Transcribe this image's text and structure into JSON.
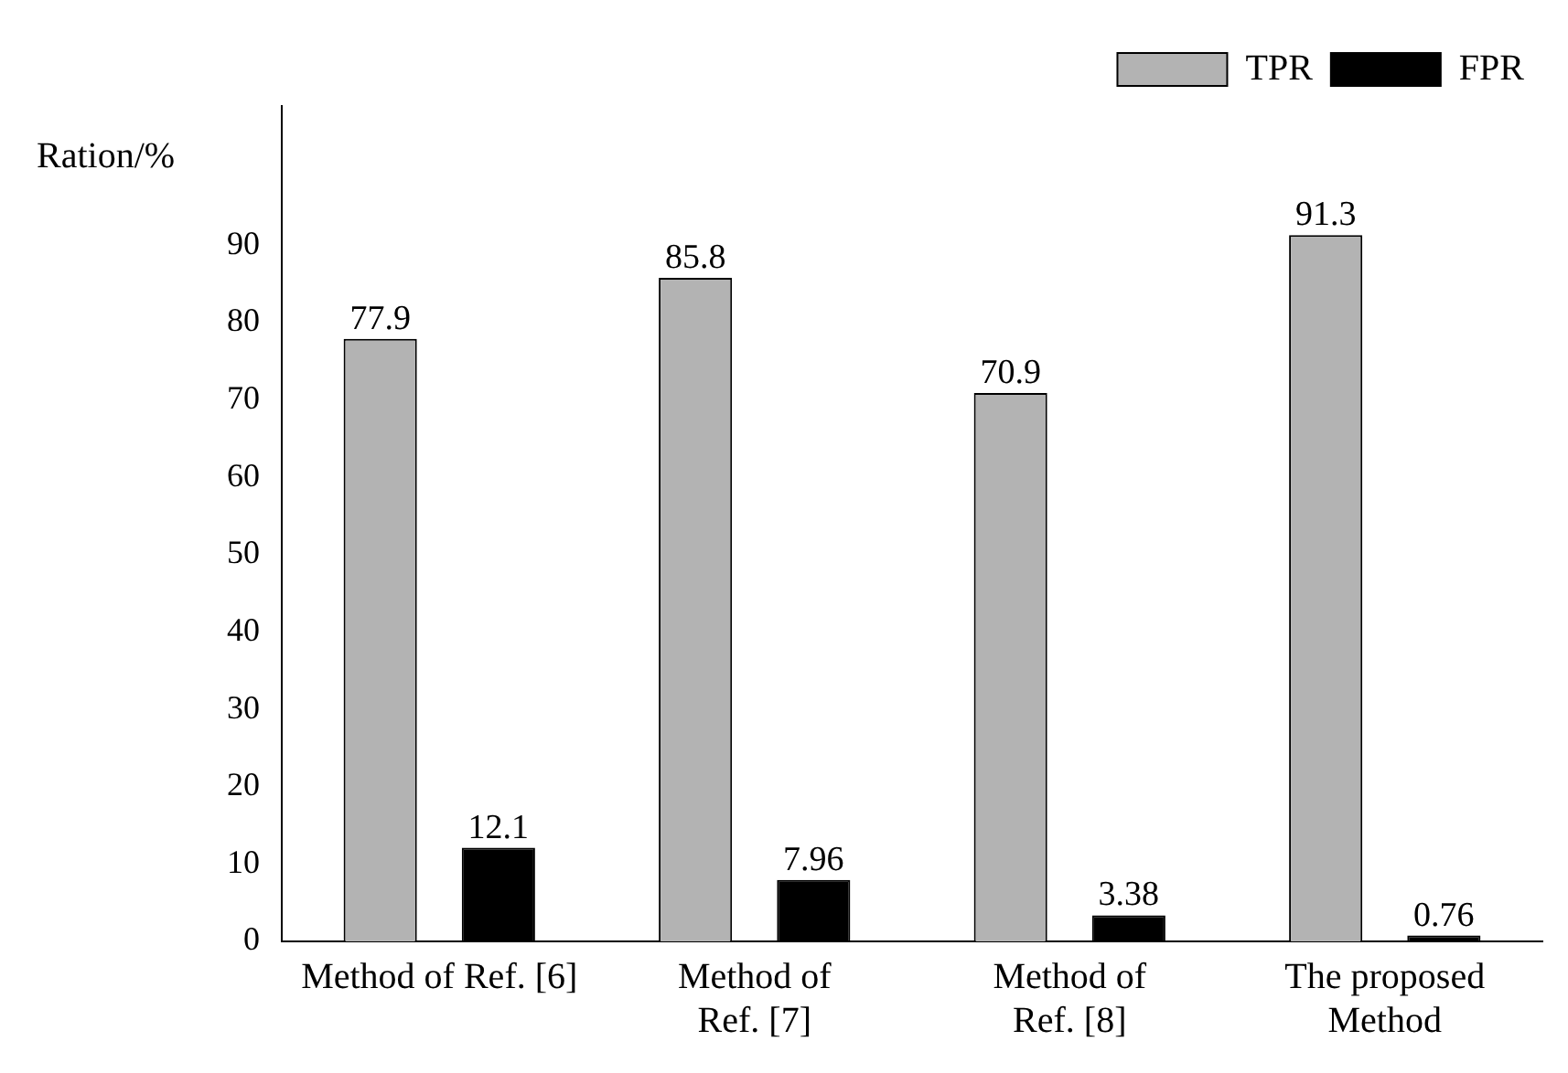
{
  "chart_data": {
    "type": "bar",
    "ylabel": "Ration/%",
    "categories": [
      "Method of Ref. [6]",
      "Method of\nRef. [7]",
      "Method of\nRef. [8]",
      "The proposed\nMethod"
    ],
    "series": [
      {
        "name": "TPR",
        "color": "#b3b3b3",
        "values": [
          77.9,
          85.8,
          70.9,
          91.3
        ]
      },
      {
        "name": "FPR",
        "color": "#000000",
        "values": [
          12.1,
          7.96,
          3.38,
          0.76
        ]
      }
    ],
    "ylim": [
      0,
      108
    ],
    "yticks": [
      0,
      10,
      20,
      30,
      40,
      50,
      60,
      70,
      80,
      90
    ],
    "grid": false,
    "legend": "top right",
    "data_labels": true
  }
}
